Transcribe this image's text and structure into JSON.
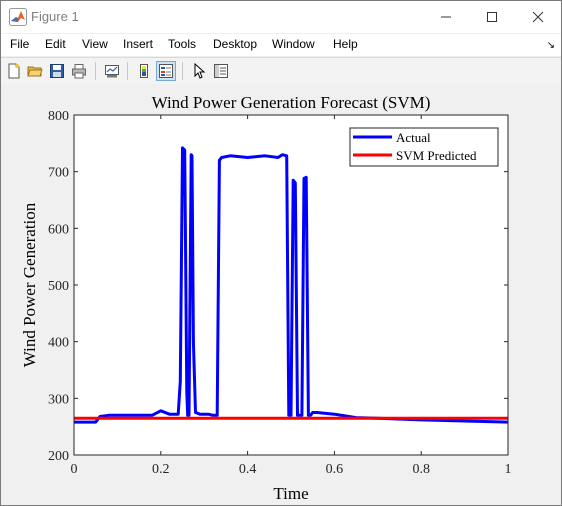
{
  "window": {
    "title": "Figure 1"
  },
  "menu": {
    "file": "File",
    "edit": "Edit",
    "view": "View",
    "insert": "Insert",
    "tools": "Tools",
    "desktop": "Desktop",
    "window": "Window",
    "help": "Help"
  },
  "toolbar": {
    "icons": [
      "new-figure-icon",
      "open-file-icon",
      "save-icon",
      "print-icon",
      "link-plot-icon",
      "colorbar-icon",
      "legend-icon",
      "pointer-icon",
      "property-inspector-icon"
    ],
    "pressed": [
      "legend-icon"
    ]
  },
  "chart_data": {
    "type": "line",
    "title": "Wind Power Generation Forecast (SVM)",
    "xlabel": "Time",
    "ylabel": "Wind Power Generation",
    "xlim": [
      0,
      1
    ],
    "ylim": [
      200,
      800
    ],
    "xticks": [
      "0",
      "0.2",
      "0.4",
      "0.6",
      "0.8",
      "1"
    ],
    "yticks": [
      "200",
      "300",
      "400",
      "500",
      "600",
      "700",
      "800"
    ],
    "legend_position": "top-right",
    "grid": false,
    "series": [
      {
        "name": "Actual",
        "color": "#0000ff",
        "x": [
          0.0,
          0.05,
          0.06,
          0.08,
          0.18,
          0.2,
          0.22,
          0.24,
          0.245,
          0.25,
          0.255,
          0.26,
          0.262,
          0.265,
          0.27,
          0.272,
          0.275,
          0.28,
          0.29,
          0.31,
          0.32,
          0.33,
          0.335,
          0.34,
          0.36,
          0.4,
          0.44,
          0.47,
          0.48,
          0.49,
          0.495,
          0.5,
          0.505,
          0.51,
          0.515,
          0.52,
          0.525,
          0.53,
          0.535,
          0.54,
          0.545,
          0.55,
          0.56,
          0.6,
          0.65,
          0.7,
          0.8,
          0.9,
          1.0
        ],
        "y": [
          258,
          258,
          268,
          270,
          270,
          278,
          272,
          272,
          330,
          742,
          738,
          310,
          270,
          270,
          730,
          728,
          400,
          275,
          272,
          272,
          270,
          270,
          720,
          725,
          728,
          725,
          728,
          725,
          730,
          728,
          270,
          270,
          685,
          680,
          270,
          270,
          270,
          688,
          690,
          270,
          270,
          275,
          275,
          272,
          266,
          265,
          262,
          260,
          258
        ]
      },
      {
        "name": "SVM Predicted",
        "color": "#ff0000",
        "x": [
          0.0,
          1.0
        ],
        "y": [
          265,
          265
        ]
      }
    ]
  }
}
